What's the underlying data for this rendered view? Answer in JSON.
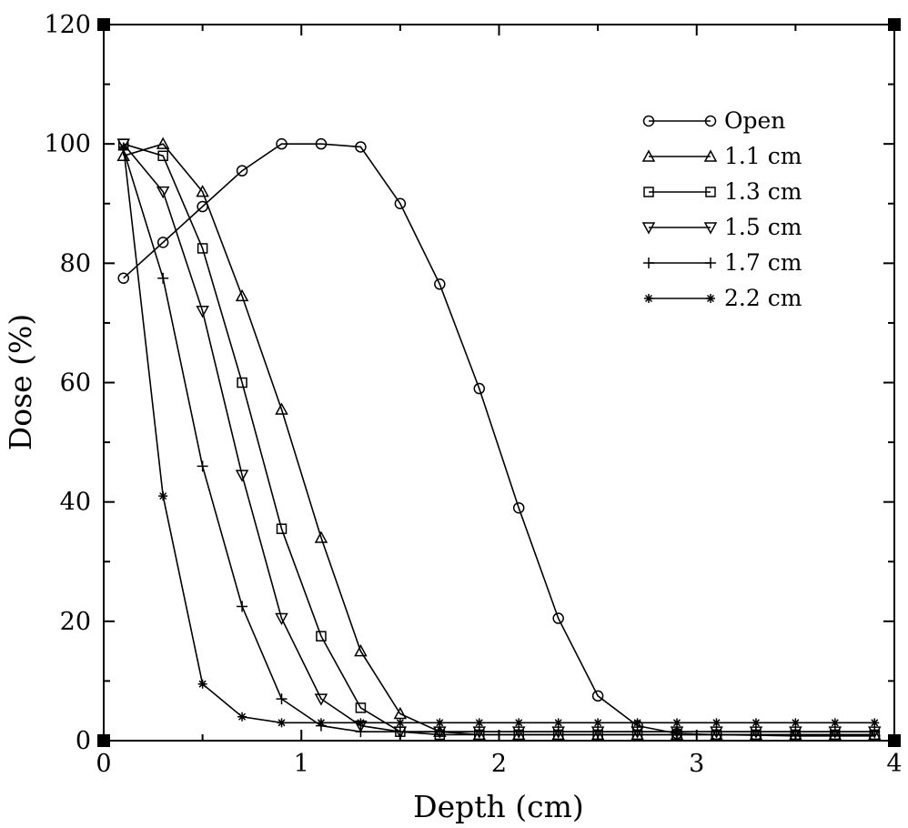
{
  "chart_data": {
    "type": "line",
    "title": "",
    "xlabel": "Depth (cm)",
    "ylabel": "Dose (%)",
    "xlim": [
      0,
      4
    ],
    "ylim": [
      0,
      120
    ],
    "xticks": [
      "0",
      "1",
      "2",
      "3",
      "4"
    ],
    "yticks": [
      "0",
      "20",
      "40",
      "60",
      "80",
      "100",
      "120"
    ],
    "grid": false,
    "legend_position": "top-right",
    "x": [
      0.1,
      0.3,
      0.5,
      0.7,
      0.9,
      1.1,
      1.3,
      1.5,
      1.7,
      1.9,
      2.1,
      2.3,
      2.5,
      2.7,
      2.9,
      3.1,
      3.3,
      3.5,
      3.7,
      3.9
    ],
    "series": [
      {
        "name": "Open",
        "marker": "circle",
        "values": [
          77.5,
          83.5,
          89.5,
          95.5,
          100,
          100,
          99.5,
          90,
          76.5,
          59,
          39,
          20.5,
          7.5,
          2.5,
          1.2,
          1.0,
          0.9,
          0.8,
          0.8,
          0.8
        ]
      },
      {
        "name": "1.1 cm",
        "marker": "triangle-up",
        "values": [
          98,
          100,
          92,
          74.5,
          55.5,
          34,
          15,
          4.5,
          1.5,
          1.0,
          1.0,
          1.0,
          1.0,
          1.0,
          1.0,
          1.0,
          1.0,
          1.0,
          1.0,
          1.0
        ]
      },
      {
        "name": "1.3 cm",
        "marker": "square",
        "values": [
          100,
          98,
          82.5,
          60,
          35.5,
          17.5,
          5.5,
          1.5,
          1.0,
          1.0,
          1.0,
          1.0,
          1.0,
          1.0,
          1.0,
          1.0,
          1.0,
          1.0,
          1.0,
          1.0
        ]
      },
      {
        "name": "1.5 cm",
        "marker": "triangle-down",
        "values": [
          100,
          92,
          72,
          44.5,
          20.5,
          7,
          2.5,
          1.5,
          1.5,
          1.5,
          1.5,
          1.5,
          1.5,
          1.5,
          1.5,
          1.5,
          1.5,
          1.5,
          1.5,
          1.5
        ]
      },
      {
        "name": "1.7 cm",
        "marker": "plus",
        "values": [
          99,
          77.5,
          46,
          22.5,
          7,
          2.5,
          1.5,
          1.5,
          1.5,
          1.5,
          1.5,
          1.5,
          1.5,
          1.5,
          1.5,
          1.5,
          1.5,
          1.5,
          1.5,
          1.5
        ]
      },
      {
        "name": "2.2 cm",
        "marker": "star",
        "values": [
          99.5,
          41,
          9.5,
          4,
          3,
          3,
          3,
          3,
          3,
          3,
          3,
          3,
          3,
          3,
          3,
          3,
          3,
          3,
          3,
          3
        ]
      }
    ]
  }
}
